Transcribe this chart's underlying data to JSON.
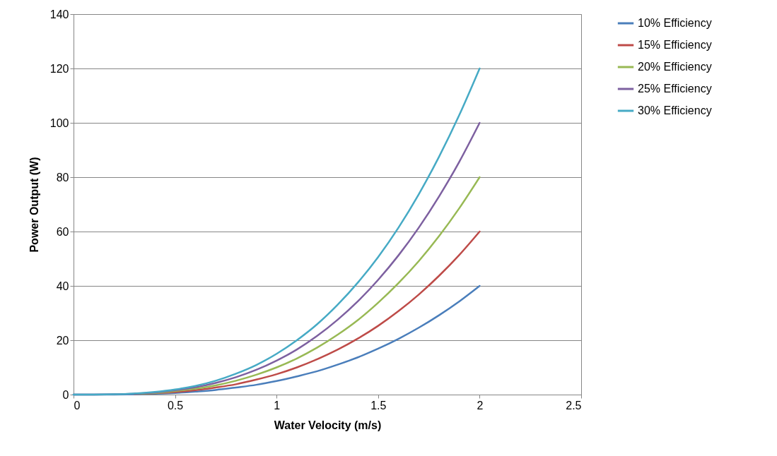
{
  "chart_data": {
    "type": "line",
    "xlabel": "Water Velocity (m/s)",
    "ylabel": "Power Output (W)",
    "x": [
      0,
      0.1,
      0.2,
      0.3,
      0.4,
      0.5,
      0.6,
      0.7,
      0.8,
      0.9,
      1,
      1.1,
      1.2,
      1.3,
      1.4,
      1.5,
      1.6,
      1.7,
      1.8,
      1.9,
      2
    ],
    "series": [
      {
        "name": "10% Efficiency",
        "color": "#4a7ebb",
        "values": [
          0,
          0,
          0,
          0.1,
          0.3,
          0.6,
          1.1,
          1.7,
          2.6,
          3.6,
          5,
          6.7,
          8.6,
          11,
          13.7,
          16.9,
          20.5,
          24.6,
          29.2,
          34.3,
          40
        ]
      },
      {
        "name": "15% Efficiency",
        "color": "#be4b48",
        "values": [
          null,
          null,
          null,
          0.2,
          0.5,
          0.9,
          1.6,
          2.6,
          3.8,
          5.5,
          7.5,
          10,
          13,
          16.5,
          20.6,
          25.3,
          30.7,
          36.8,
          43.7,
          51.4,
          60
        ]
      },
      {
        "name": "20% Efficiency",
        "color": "#98b954",
        "values": [
          null,
          null,
          null,
          0.3,
          0.6,
          1.3,
          2.2,
          3.4,
          5.1,
          7.3,
          10,
          13.3,
          17.3,
          22,
          27.4,
          33.8,
          41,
          49.1,
          58.3,
          68.6,
          80
        ]
      },
      {
        "name": "25% Efficiency",
        "color": "#7d60a0",
        "values": [
          0,
          0,
          0.1,
          0.3,
          0.8,
          1.6,
          2.7,
          4.3,
          6.4,
          9.1,
          12.5,
          16.6,
          21.6,
          27.5,
          34.3,
          42.2,
          51.2,
          61.4,
          72.9,
          85.7,
          100
        ]
      },
      {
        "name": "30% Efficiency",
        "color": "#46aac5",
        "values": [
          0,
          0,
          0.1,
          0.4,
          1,
          1.9,
          3.2,
          5.1,
          7.7,
          10.9,
          15,
          20,
          25.9,
          33,
          41.2,
          50.6,
          61.4,
          73.7,
          87.5,
          102.9,
          120
        ]
      }
    ],
    "xlim": [
      0,
      2.5
    ],
    "xticks": [
      0,
      0.5,
      1,
      1.5,
      2,
      2.5
    ],
    "ylim": [
      0,
      140
    ],
    "yticks": [
      0,
      20,
      40,
      60,
      80,
      100,
      120,
      140
    ],
    "grid": "y",
    "legend": "right",
    "marker": "none",
    "line_style": "solid"
  }
}
